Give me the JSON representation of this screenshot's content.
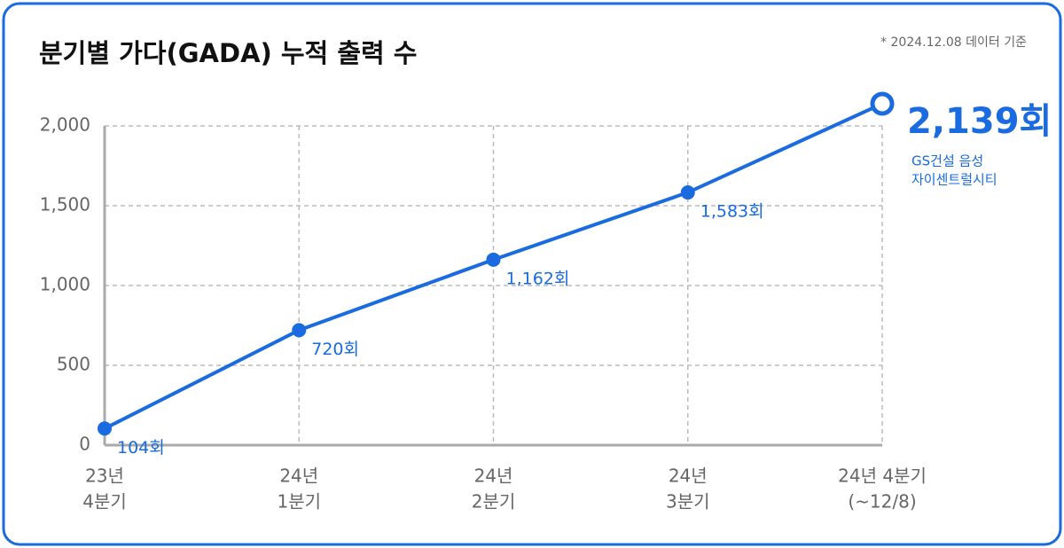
{
  "chart_data": {
    "type": "line",
    "title": "분기별 가다(GADA) 누적 출력 수",
    "subtitle": "* 2024.12.08 데이터 기준",
    "categories": [
      [
        "23년",
        "4분기"
      ],
      [
        "24년",
        "1분기"
      ],
      [
        "24년",
        "2분기"
      ],
      [
        "24년",
        "3분기"
      ],
      [
        "24년 4분기",
        "(~12/8)"
      ]
    ],
    "series": [
      {
        "name": null,
        "color": "#1a6be0",
        "values": [
          104,
          720,
          1162,
          1583,
          2139
        ],
        "value_labels": [
          "104회",
          "720회",
          "1,162회",
          "1,583회",
          "2,139회"
        ]
      }
    ],
    "annotation": [
      "GS건설 음성",
      "자이센트럴시티"
    ],
    "ylim": [
      0,
      2000
    ],
    "yticks": [
      0,
      500,
      {
        "value": 1000,
        "label": "1,000"
      },
      {
        "value": 1500,
        "label": "1,500"
      },
      {
        "value": 2000,
        "label": "2,000"
      }
    ],
    "grid": true
  }
}
